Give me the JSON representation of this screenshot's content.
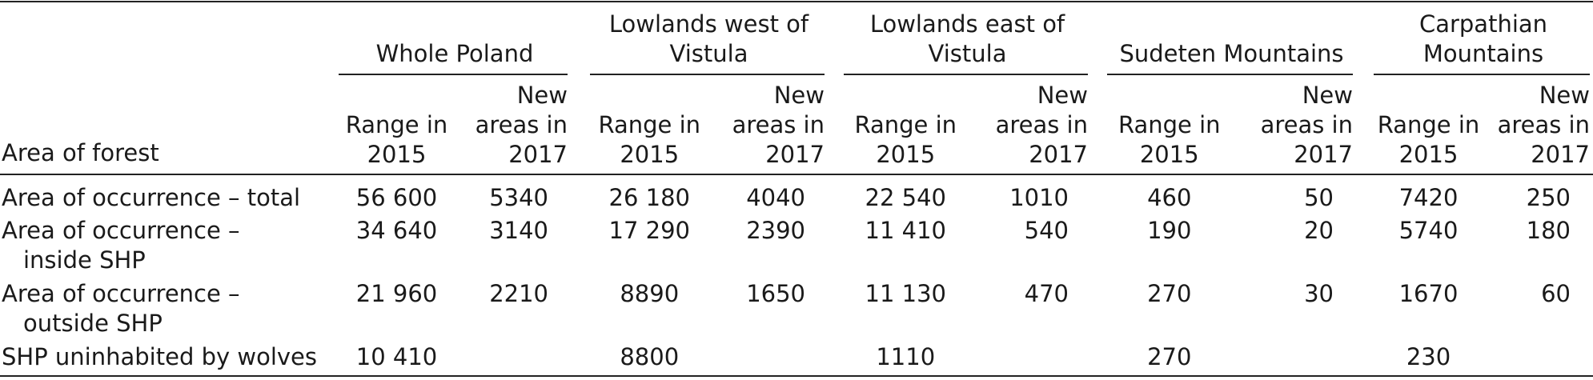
{
  "table": {
    "corner": [
      "Area of forest"
    ],
    "groups": [
      {
        "title": [
          "Whole Poland"
        ],
        "sub": [
          [
            "Range in",
            "2015"
          ],
          [
            "New",
            "areas in",
            "2017"
          ]
        ]
      },
      {
        "title": [
          "Lowlands west of",
          "Vistula"
        ],
        "sub": [
          [
            "Range in",
            "2015"
          ],
          [
            "New",
            "areas in",
            "2017"
          ]
        ]
      },
      {
        "title": [
          "Lowlands east of",
          "Vistula"
        ],
        "sub": [
          [
            "Range in",
            "2015"
          ],
          [
            "New",
            "areas in",
            "2017"
          ]
        ]
      },
      {
        "title": [
          "Sudeten Mountains"
        ],
        "sub": [
          [
            "Range in",
            "2015"
          ],
          [
            "New",
            "areas in",
            "2017"
          ]
        ]
      },
      {
        "title": [
          "Carpathian",
          "Mountains"
        ],
        "sub": [
          [
            "Range in",
            "2015"
          ],
          [
            "New",
            "areas in",
            "2017"
          ]
        ]
      }
    ],
    "rows": [
      {
        "label": [
          "Area of occurrence – total"
        ],
        "cells": [
          "56 600",
          "5340",
          "26 180",
          "4040",
          "22 540",
          "1010",
          "460",
          "50",
          "7420",
          "250"
        ]
      },
      {
        "label": [
          "Area of occurrence –",
          "inside SHP"
        ],
        "cells": [
          "34 640",
          "3140",
          "17 290",
          "2390",
          "11 410",
          "540",
          "190",
          "20",
          "5740",
          "180"
        ]
      },
      {
        "label": [
          "Area of occurrence –",
          "outside SHP"
        ],
        "cells": [
          "21 960",
          "2210",
          "8890",
          "1650",
          "11 130",
          "470",
          "270",
          "30",
          "1670",
          "60"
        ]
      },
      {
        "label": [
          "SHP uninhabited by wolves"
        ],
        "cells": [
          "10 410",
          null,
          "8800",
          null,
          "1110",
          null,
          "270",
          null,
          "230",
          null
        ]
      }
    ]
  }
}
